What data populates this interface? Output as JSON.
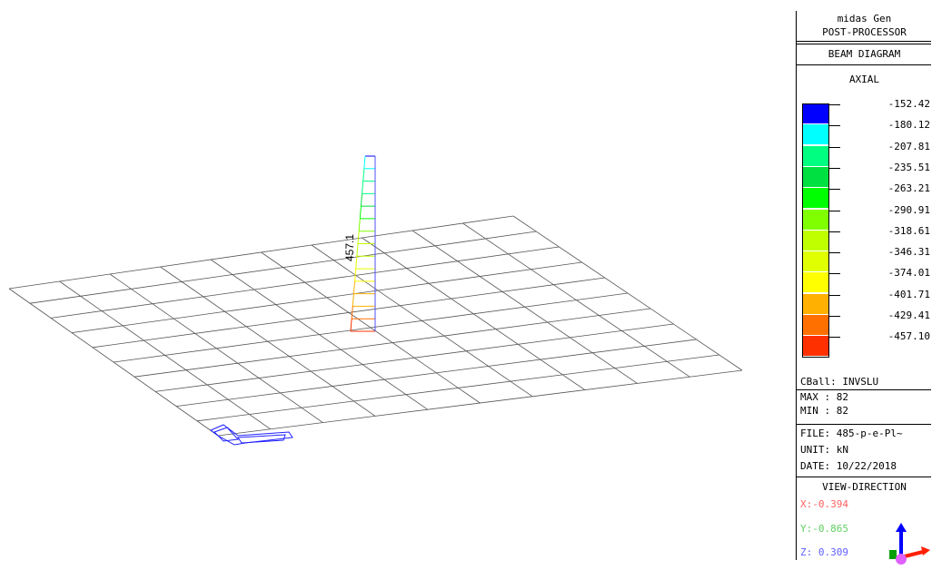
{
  "header": {
    "app_name": "midas Gen",
    "module": "POST-PROCESSOR",
    "diagram_type": "BEAM DIAGRAM",
    "component": "AXIAL"
  },
  "legend": {
    "values": [
      "-152.42",
      "-180.12",
      "-207.81",
      "-235.51",
      "-263.21",
      "-290.91",
      "-318.61",
      "-346.31",
      "-374.01",
      "-401.71",
      "-429.41",
      "-457.10"
    ],
    "colors": [
      "#0000ff",
      "#00ffff",
      "#00ff80",
      "#00e040",
      "#00ff00",
      "#80ff00",
      "#c0ff00",
      "#e0ff00",
      "#ffff00",
      "#ffb000",
      "#ff7000",
      "#ff3000"
    ]
  },
  "load_case": "CBall: INVSLU",
  "max_label": "MAX : 82",
  "min_label": "MIN : 82",
  "file_label": "FILE: 485-p-e-Pl~",
  "unit_label": "UNIT: kN",
  "date_label": "DATE: 10/22/2018",
  "view_direction": {
    "title": "VIEW-DIRECTION",
    "x": "X:-0.394",
    "y": "Y:-0.865",
    "z": "Z: 0.309",
    "x_color": "#ff6060",
    "y_color": "#60d060",
    "z_color": "#6060ff"
  },
  "diagram_label": "457.1"
}
